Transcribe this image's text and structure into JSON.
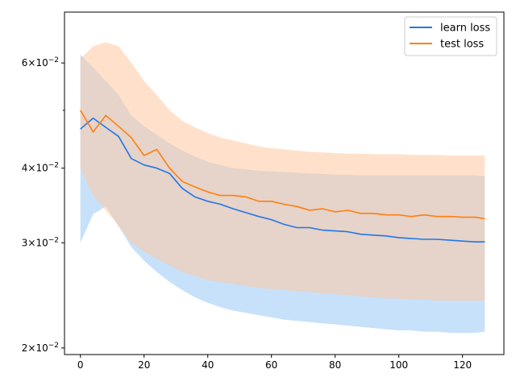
{
  "chart_data": {
    "type": "line",
    "title": "",
    "xlabel": "",
    "ylabel": "",
    "xlim": [
      -5,
      133
    ],
    "ylim": [
      0.0195,
      0.073
    ],
    "yscale": "log",
    "grid": false,
    "legend_position": "top-right",
    "x_ticks": [
      0,
      20,
      40,
      60,
      80,
      100,
      120
    ],
    "x_tick_labels": [
      "0",
      "20",
      "40",
      "60",
      "80",
      "100",
      "120"
    ],
    "y_ticks": [
      0.02,
      0.03,
      0.04,
      0.06
    ],
    "y_tick_labels": [
      {
        "mantissa": "2",
        "base": "10",
        "exp": "−2"
      },
      {
        "mantissa": "3",
        "base": "10",
        "exp": "−2"
      },
      {
        "mantissa": "4",
        "base": "10",
        "exp": "−2"
      },
      {
        "mantissa": "6",
        "base": "10",
        "exp": "−2"
      }
    ],
    "y_minor_ticks": [
      0.05
    ],
    "x": [
      0,
      4,
      8,
      12,
      16,
      20,
      24,
      28,
      32,
      36,
      40,
      44,
      48,
      52,
      56,
      60,
      64,
      68,
      72,
      76,
      80,
      84,
      88,
      92,
      96,
      100,
      104,
      108,
      112,
      116,
      120,
      124,
      127
    ],
    "series": [
      {
        "name": "learn loss",
        "color": "#1f77e8",
        "band_color": "#99c8f8",
        "values": [
          0.0465,
          0.0485,
          0.0468,
          0.0452,
          0.0415,
          0.0405,
          0.04,
          0.0392,
          0.037,
          0.0358,
          0.0352,
          0.0348,
          0.0342,
          0.0337,
          0.0332,
          0.0328,
          0.0322,
          0.0318,
          0.0318,
          0.0315,
          0.0314,
          0.0313,
          0.031,
          0.0309,
          0.0308,
          0.0306,
          0.0305,
          0.0304,
          0.0304,
          0.0303,
          0.0302,
          0.0301,
          0.0301
        ],
        "band_upper": [
          0.062,
          0.059,
          0.056,
          0.053,
          0.049,
          0.047,
          0.0455,
          0.044,
          0.0428,
          0.0418,
          0.041,
          0.0405,
          0.04,
          0.0398,
          0.0396,
          0.0395,
          0.0394,
          0.0393,
          0.0392,
          0.0391,
          0.039,
          0.039,
          0.0389,
          0.0389,
          0.0389,
          0.0389,
          0.0389,
          0.0389,
          0.0389,
          0.0389,
          0.0389,
          0.0389,
          0.0388
        ],
        "band_lower": [
          0.03,
          0.0335,
          0.0345,
          0.032,
          0.0295,
          0.028,
          0.0268,
          0.0258,
          0.025,
          0.0243,
          0.0238,
          0.0234,
          0.0231,
          0.0229,
          0.0227,
          0.0225,
          0.0223,
          0.0222,
          0.0221,
          0.022,
          0.0219,
          0.0218,
          0.0217,
          0.0216,
          0.0215,
          0.0214,
          0.0214,
          0.0213,
          0.0213,
          0.0212,
          0.0212,
          0.0212,
          0.0213
        ]
      },
      {
        "name": "test loss",
        "color": "#ff7f0e",
        "band_color": "#ffc8a0",
        "values": [
          0.05,
          0.046,
          0.049,
          0.047,
          0.045,
          0.042,
          0.043,
          0.04,
          0.038,
          0.0372,
          0.0365,
          0.036,
          0.036,
          0.0358,
          0.0352,
          0.0352,
          0.0348,
          0.0345,
          0.034,
          0.0342,
          0.0338,
          0.034,
          0.0336,
          0.0336,
          0.0334,
          0.0334,
          0.0332,
          0.0334,
          0.0332,
          0.0332,
          0.0331,
          0.0331,
          0.0329
        ],
        "band_upper": [
          0.061,
          0.064,
          0.065,
          0.064,
          0.06,
          0.056,
          0.053,
          0.05,
          0.048,
          0.0468,
          0.0458,
          0.045,
          0.0445,
          0.044,
          0.0435,
          0.0432,
          0.043,
          0.0428,
          0.0426,
          0.0425,
          0.0424,
          0.0423,
          0.0423,
          0.0422,
          0.0422,
          0.0422,
          0.0421,
          0.0421,
          0.0421,
          0.042,
          0.042,
          0.042,
          0.042
        ],
        "band_lower": [
          0.04,
          0.036,
          0.034,
          0.032,
          0.03,
          0.029,
          0.0282,
          0.0275,
          0.0268,
          0.0264,
          0.026,
          0.0258,
          0.0256,
          0.0254,
          0.0252,
          0.0251,
          0.025,
          0.0249,
          0.0248,
          0.0247,
          0.0246,
          0.0245,
          0.0244,
          0.0243,
          0.0242,
          0.0242,
          0.0241,
          0.0241,
          0.024,
          0.024,
          0.024,
          0.024,
          0.024
        ]
      }
    ]
  }
}
